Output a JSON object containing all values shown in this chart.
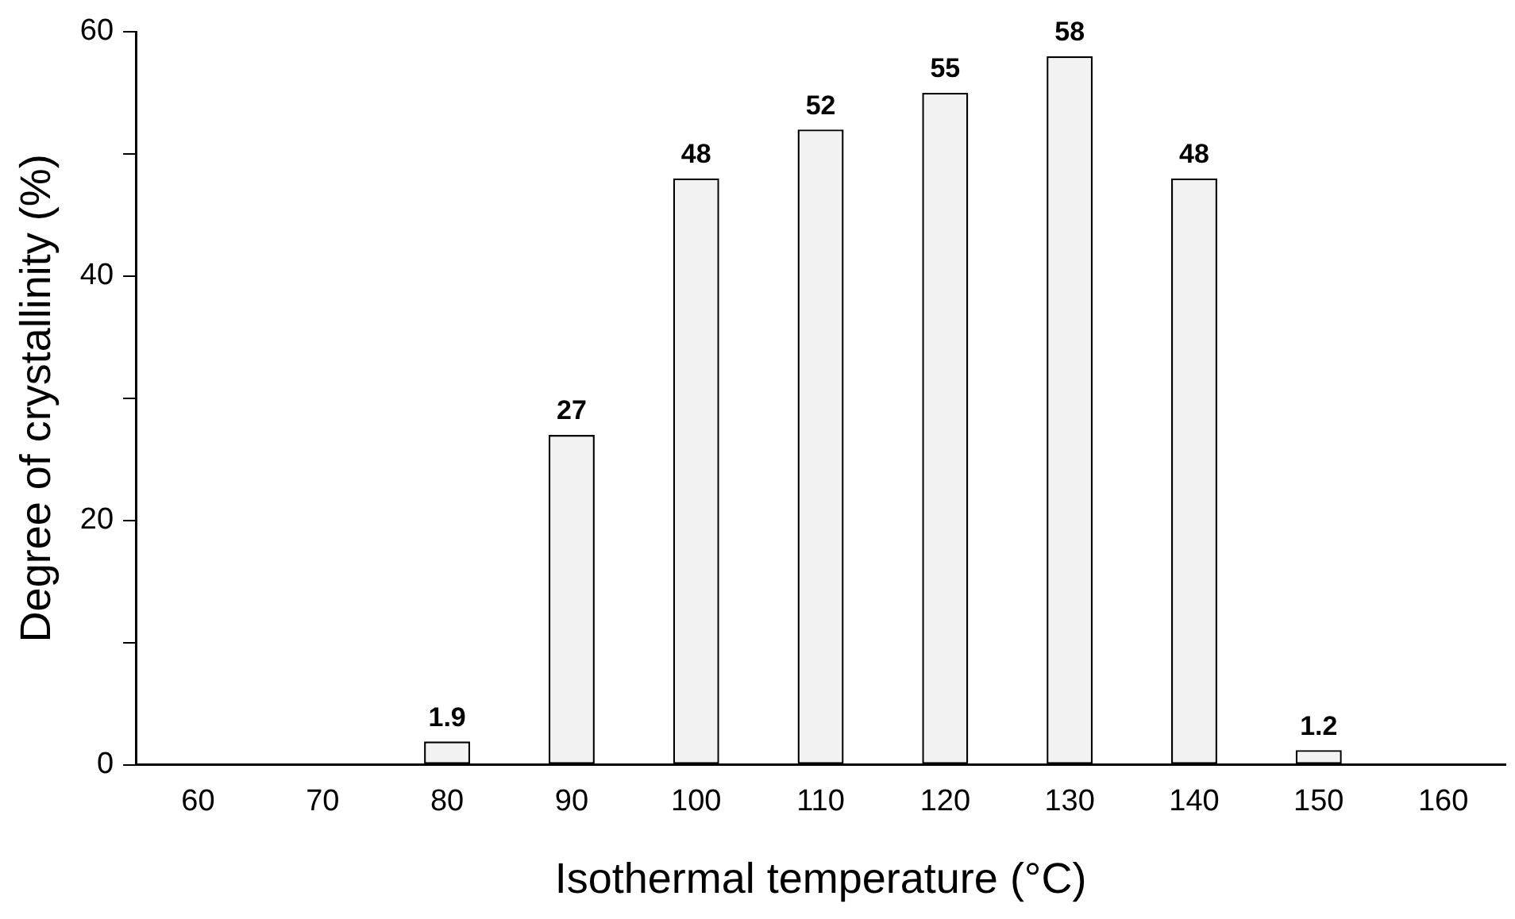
{
  "chart_data": {
    "type": "bar",
    "xlabel": "Isothermal temperature (°C)",
    "ylabel": "Degree of crystallinity (%)",
    "categories": [
      "60",
      "70",
      "80",
      "90",
      "100",
      "110",
      "120",
      "130",
      "140",
      "150",
      "160"
    ],
    "values": [
      null,
      null,
      1.9,
      27,
      48,
      52,
      55,
      58,
      48,
      1.2,
      null
    ],
    "color": "#f2f2f2",
    "ylim": [
      0,
      60
    ],
    "yticks": [
      0,
      {
        "value": 10,
        "label": null
      },
      20,
      {
        "value": 30,
        "label": null
      },
      40,
      {
        "value": 50,
        "label": null
      },
      60
    ],
    "grid": false,
    "legend": false,
    "data_labels": true
  }
}
